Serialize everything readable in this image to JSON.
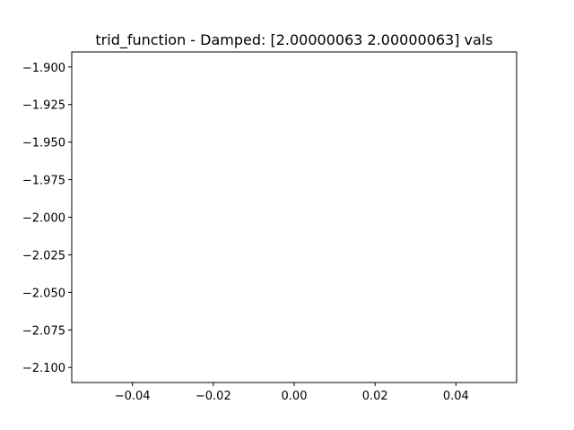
{
  "chart_data": {
    "type": "line",
    "title": "trid_function - Damped: [2.00000063 2.00000063] vals",
    "xlabel": "",
    "ylabel": "",
    "xlim": [
      -0.055,
      0.055
    ],
    "ylim": [
      -2.11,
      -1.89
    ],
    "x_ticks": [
      -0.04,
      -0.02,
      0.0,
      0.02,
      0.04
    ],
    "x_tick_labels": [
      "−0.04",
      "−0.02",
      "0.00",
      "0.02",
      "0.04"
    ],
    "y_ticks": [
      -1.9,
      -1.925,
      -1.95,
      -1.975,
      -2.0,
      -2.025,
      -2.05,
      -2.075,
      -2.1
    ],
    "y_tick_labels": [
      "−1.900",
      "−1.925",
      "−1.950",
      "−1.975",
      "−2.000",
      "−2.025",
      "−2.050",
      "−2.075",
      "−2.100"
    ],
    "series": [],
    "grid": false,
    "legend": false,
    "colors": {
      "axes": "#000000",
      "background": "#ffffff"
    }
  }
}
